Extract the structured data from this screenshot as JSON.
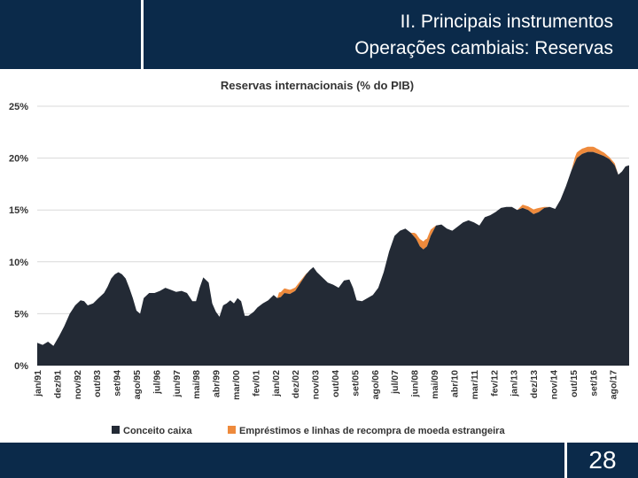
{
  "header": {
    "title_line1": "II. Principais instrumentos",
    "title_line2": "Operações cambiais: Reservas"
  },
  "footer": {
    "page_number": "28"
  },
  "colors": {
    "navy": "#0b2a4a",
    "caixa": "#232a35",
    "emprestimos": "#ee8a3c",
    "grid": "#d9d9d9"
  },
  "chart_data": {
    "type": "area",
    "title": "Reservas internacionais (% do PIB)",
    "ylim": [
      0,
      25
    ],
    "y_ticks": [
      0,
      5,
      10,
      15,
      20,
      25
    ],
    "y_tick_labels": [
      "0%",
      "5%",
      "10%",
      "15%",
      "20%",
      "25%"
    ],
    "x_tick_labels": [
      "jan/91",
      "dez/91",
      "nov/92",
      "out/93",
      "set/94",
      "ago/95",
      "jul/96",
      "jun/97",
      "mai/98",
      "abr/99",
      "mar/00",
      "fev/01",
      "jan/02",
      "dez/02",
      "nov/03",
      "out/04",
      "set/05",
      "ago/06",
      "jul/07",
      "jun/08",
      "mai/09",
      "abr/10",
      "mar/11",
      "fev/12",
      "jan/13",
      "dez/13",
      "nov/14",
      "out/15",
      "set/16",
      "ago/17"
    ],
    "x_tick_index": [
      0,
      11,
      22,
      33,
      44,
      55,
      66,
      77,
      88,
      99,
      110,
      121,
      132,
      143,
      154,
      165,
      176,
      187,
      198,
      209,
      220,
      231,
      242,
      253,
      264,
      275,
      286,
      297,
      308,
      319
    ],
    "x_range": [
      0,
      328
    ],
    "grid": true,
    "legend_position": "bottom",
    "series": [
      {
        "name": "Conceito caixa",
        "color": "#232a35",
        "points": [
          [
            0,
            2.2
          ],
          [
            3,
            2.0
          ],
          [
            6,
            2.3
          ],
          [
            9,
            1.9
          ],
          [
            12,
            2.8
          ],
          [
            15,
            3.8
          ],
          [
            18,
            5.0
          ],
          [
            21,
            5.8
          ],
          [
            24,
            6.3
          ],
          [
            26,
            6.2
          ],
          [
            28,
            5.8
          ],
          [
            31,
            6.0
          ],
          [
            34,
            6.5
          ],
          [
            37,
            7.0
          ],
          [
            39,
            7.6
          ],
          [
            41,
            8.4
          ],
          [
            43,
            8.8
          ],
          [
            45,
            9.0
          ],
          [
            47,
            8.8
          ],
          [
            49,
            8.4
          ],
          [
            51,
            7.5
          ],
          [
            53,
            6.5
          ],
          [
            55,
            5.3
          ],
          [
            57,
            5.0
          ],
          [
            59,
            6.5
          ],
          [
            62,
            7.0
          ],
          [
            65,
            7.0
          ],
          [
            68,
            7.2
          ],
          [
            71,
            7.5
          ],
          [
            74,
            7.3
          ],
          [
            77,
            7.1
          ],
          [
            80,
            7.2
          ],
          [
            83,
            7.0
          ],
          [
            86,
            6.2
          ],
          [
            88,
            6.2
          ],
          [
            90,
            7.5
          ],
          [
            92,
            8.5
          ],
          [
            95,
            8.0
          ],
          [
            97,
            6.0
          ],
          [
            99,
            5.2
          ],
          [
            101,
            4.7
          ],
          [
            103,
            5.8
          ],
          [
            105,
            6.0
          ],
          [
            107,
            6.3
          ],
          [
            109,
            6.0
          ],
          [
            111,
            6.5
          ],
          [
            113,
            6.2
          ],
          [
            115,
            4.8
          ],
          [
            117,
            4.8
          ],
          [
            120,
            5.2
          ],
          [
            122,
            5.6
          ],
          [
            125,
            6.0
          ],
          [
            128,
            6.3
          ],
          [
            131,
            6.8
          ],
          [
            133,
            6.5
          ],
          [
            135,
            6.6
          ],
          [
            137,
            7.0
          ],
          [
            140,
            6.9
          ],
          [
            143,
            7.2
          ],
          [
            146,
            8.0
          ],
          [
            149,
            8.8
          ],
          [
            151,
            9.2
          ],
          [
            153,
            9.5
          ],
          [
            155,
            9.0
          ],
          [
            158,
            8.5
          ],
          [
            161,
            8.0
          ],
          [
            164,
            7.8
          ],
          [
            167,
            7.5
          ],
          [
            170,
            8.2
          ],
          [
            173,
            8.3
          ],
          [
            175,
            7.5
          ],
          [
            177,
            6.3
          ],
          [
            180,
            6.2
          ],
          [
            183,
            6.5
          ],
          [
            186,
            6.8
          ],
          [
            189,
            7.5
          ],
          [
            192,
            9.0
          ],
          [
            195,
            11.0
          ],
          [
            198,
            12.5
          ],
          [
            201,
            13.0
          ],
          [
            204,
            13.2
          ],
          [
            207,
            12.8
          ],
          [
            210,
            12.2
          ],
          [
            212,
            11.5
          ],
          [
            214,
            11.2
          ],
          [
            216,
            11.5
          ],
          [
            218,
            12.5
          ],
          [
            221,
            13.5
          ],
          [
            224,
            13.6
          ],
          [
            227,
            13.2
          ],
          [
            230,
            13.0
          ],
          [
            233,
            13.4
          ],
          [
            236,
            13.8
          ],
          [
            239,
            14.0
          ],
          [
            242,
            13.8
          ],
          [
            245,
            13.5
          ],
          [
            248,
            14.3
          ],
          [
            251,
            14.5
          ],
          [
            254,
            14.8
          ],
          [
            257,
            15.2
          ],
          [
            260,
            15.3
          ],
          [
            263,
            15.3
          ],
          [
            266,
            15.0
          ],
          [
            269,
            15.2
          ],
          [
            272,
            15.0
          ],
          [
            275,
            14.6
          ],
          [
            278,
            14.8
          ],
          [
            281,
            15.2
          ],
          [
            284,
            15.3
          ],
          [
            287,
            15.1
          ],
          [
            290,
            16.0
          ],
          [
            293,
            17.3
          ],
          [
            296,
            18.8
          ],
          [
            299,
            20.0
          ],
          [
            302,
            20.4
          ],
          [
            305,
            20.6
          ],
          [
            308,
            20.6
          ],
          [
            311,
            20.4
          ],
          [
            314,
            20.2
          ],
          [
            317,
            19.9
          ],
          [
            320,
            19.3
          ],
          [
            322,
            18.4
          ],
          [
            324,
            18.7
          ],
          [
            326,
            19.2
          ],
          [
            328,
            19.3
          ]
        ]
      },
      {
        "name": "Empréstimos e linhas de recompra de moeda estrangeira",
        "color": "#ee8a3c",
        "points": [
          [
            0,
            0
          ],
          [
            133,
            0
          ],
          [
            134,
            0.5
          ],
          [
            140,
            0.4
          ],
          [
            144,
            0.3
          ],
          [
            150,
            0
          ],
          [
            207,
            0
          ],
          [
            209,
            0.4
          ],
          [
            212,
            0.7
          ],
          [
            215,
            0.8
          ],
          [
            218,
            0.6
          ],
          [
            221,
            0
          ],
          [
            266,
            0
          ],
          [
            269,
            0.3
          ],
          [
            272,
            0.35
          ],
          [
            275,
            0.45
          ],
          [
            278,
            0.4
          ],
          [
            281,
            0.1
          ],
          [
            284,
            0
          ],
          [
            296,
            0
          ],
          [
            298,
            0.5
          ],
          [
            300,
            0.55
          ],
          [
            303,
            0.5
          ],
          [
            306,
            0.5
          ],
          [
            309,
            0.5
          ],
          [
            312,
            0.4
          ],
          [
            315,
            0.3
          ],
          [
            317,
            0.2
          ],
          [
            320,
            0.2
          ],
          [
            322,
            0
          ],
          [
            328,
            0
          ]
        ]
      }
    ]
  }
}
